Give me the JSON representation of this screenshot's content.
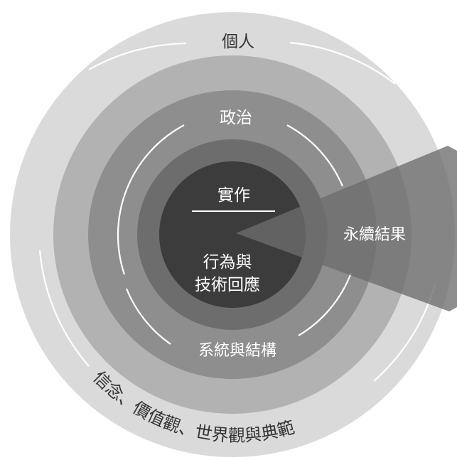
{
  "diagram": {
    "rings": {
      "individual": {
        "label": "個人"
      },
      "beliefs": {
        "label": "信念、價值觀、世界觀與典範"
      },
      "politics": {
        "label": "政治"
      },
      "systems": {
        "label": "系統與結構"
      },
      "practice": {
        "label": "實作",
        "sub_line1": "行為與",
        "sub_line2": "技術回應"
      }
    },
    "wedge": {
      "label": "永續結果"
    }
  }
}
